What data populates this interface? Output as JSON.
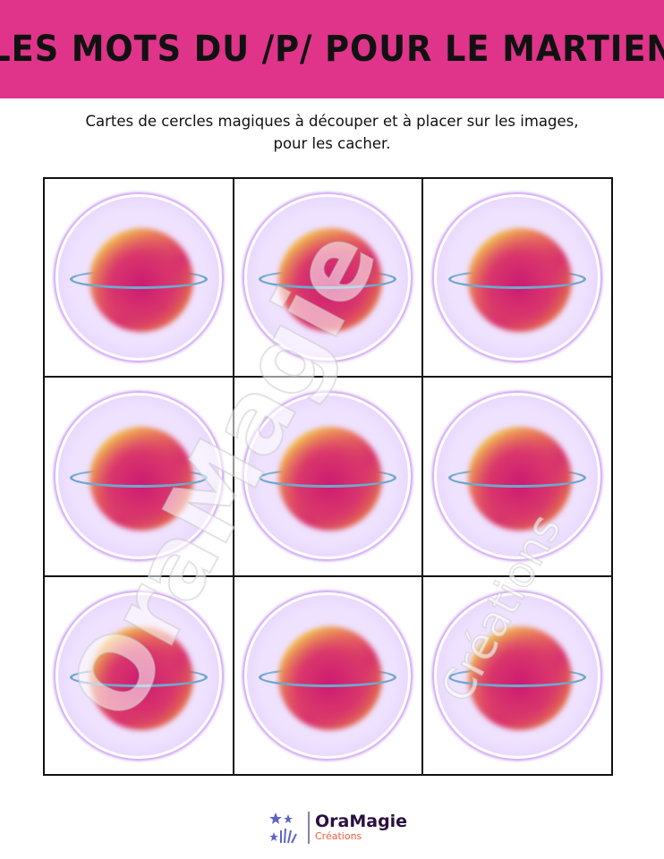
{
  "header": {
    "title": "LES MOTS DU /P/ POUR LE MARTIEN",
    "background": "#df3489"
  },
  "subtitle": {
    "line1": "Cartes de cercles magiques à découper et à placer sur les images,",
    "line2": "pour les cacher."
  },
  "cards": [
    {
      "image": "planet-bubble"
    },
    {
      "image": "planet-bubble"
    },
    {
      "image": "planet-bubble"
    },
    {
      "image": "planet-bubble"
    },
    {
      "image": "planet-bubble"
    },
    {
      "image": "planet-bubble"
    },
    {
      "image": "planet-bubble"
    },
    {
      "image": "planet-bubble"
    },
    {
      "image": "planet-bubble"
    }
  ],
  "watermark": {
    "name": "OraMagie",
    "sub": "Créations"
  },
  "logo": {
    "name": "OraMagie",
    "sub": "Créations",
    "icon": "fireworks-stars-icon"
  }
}
